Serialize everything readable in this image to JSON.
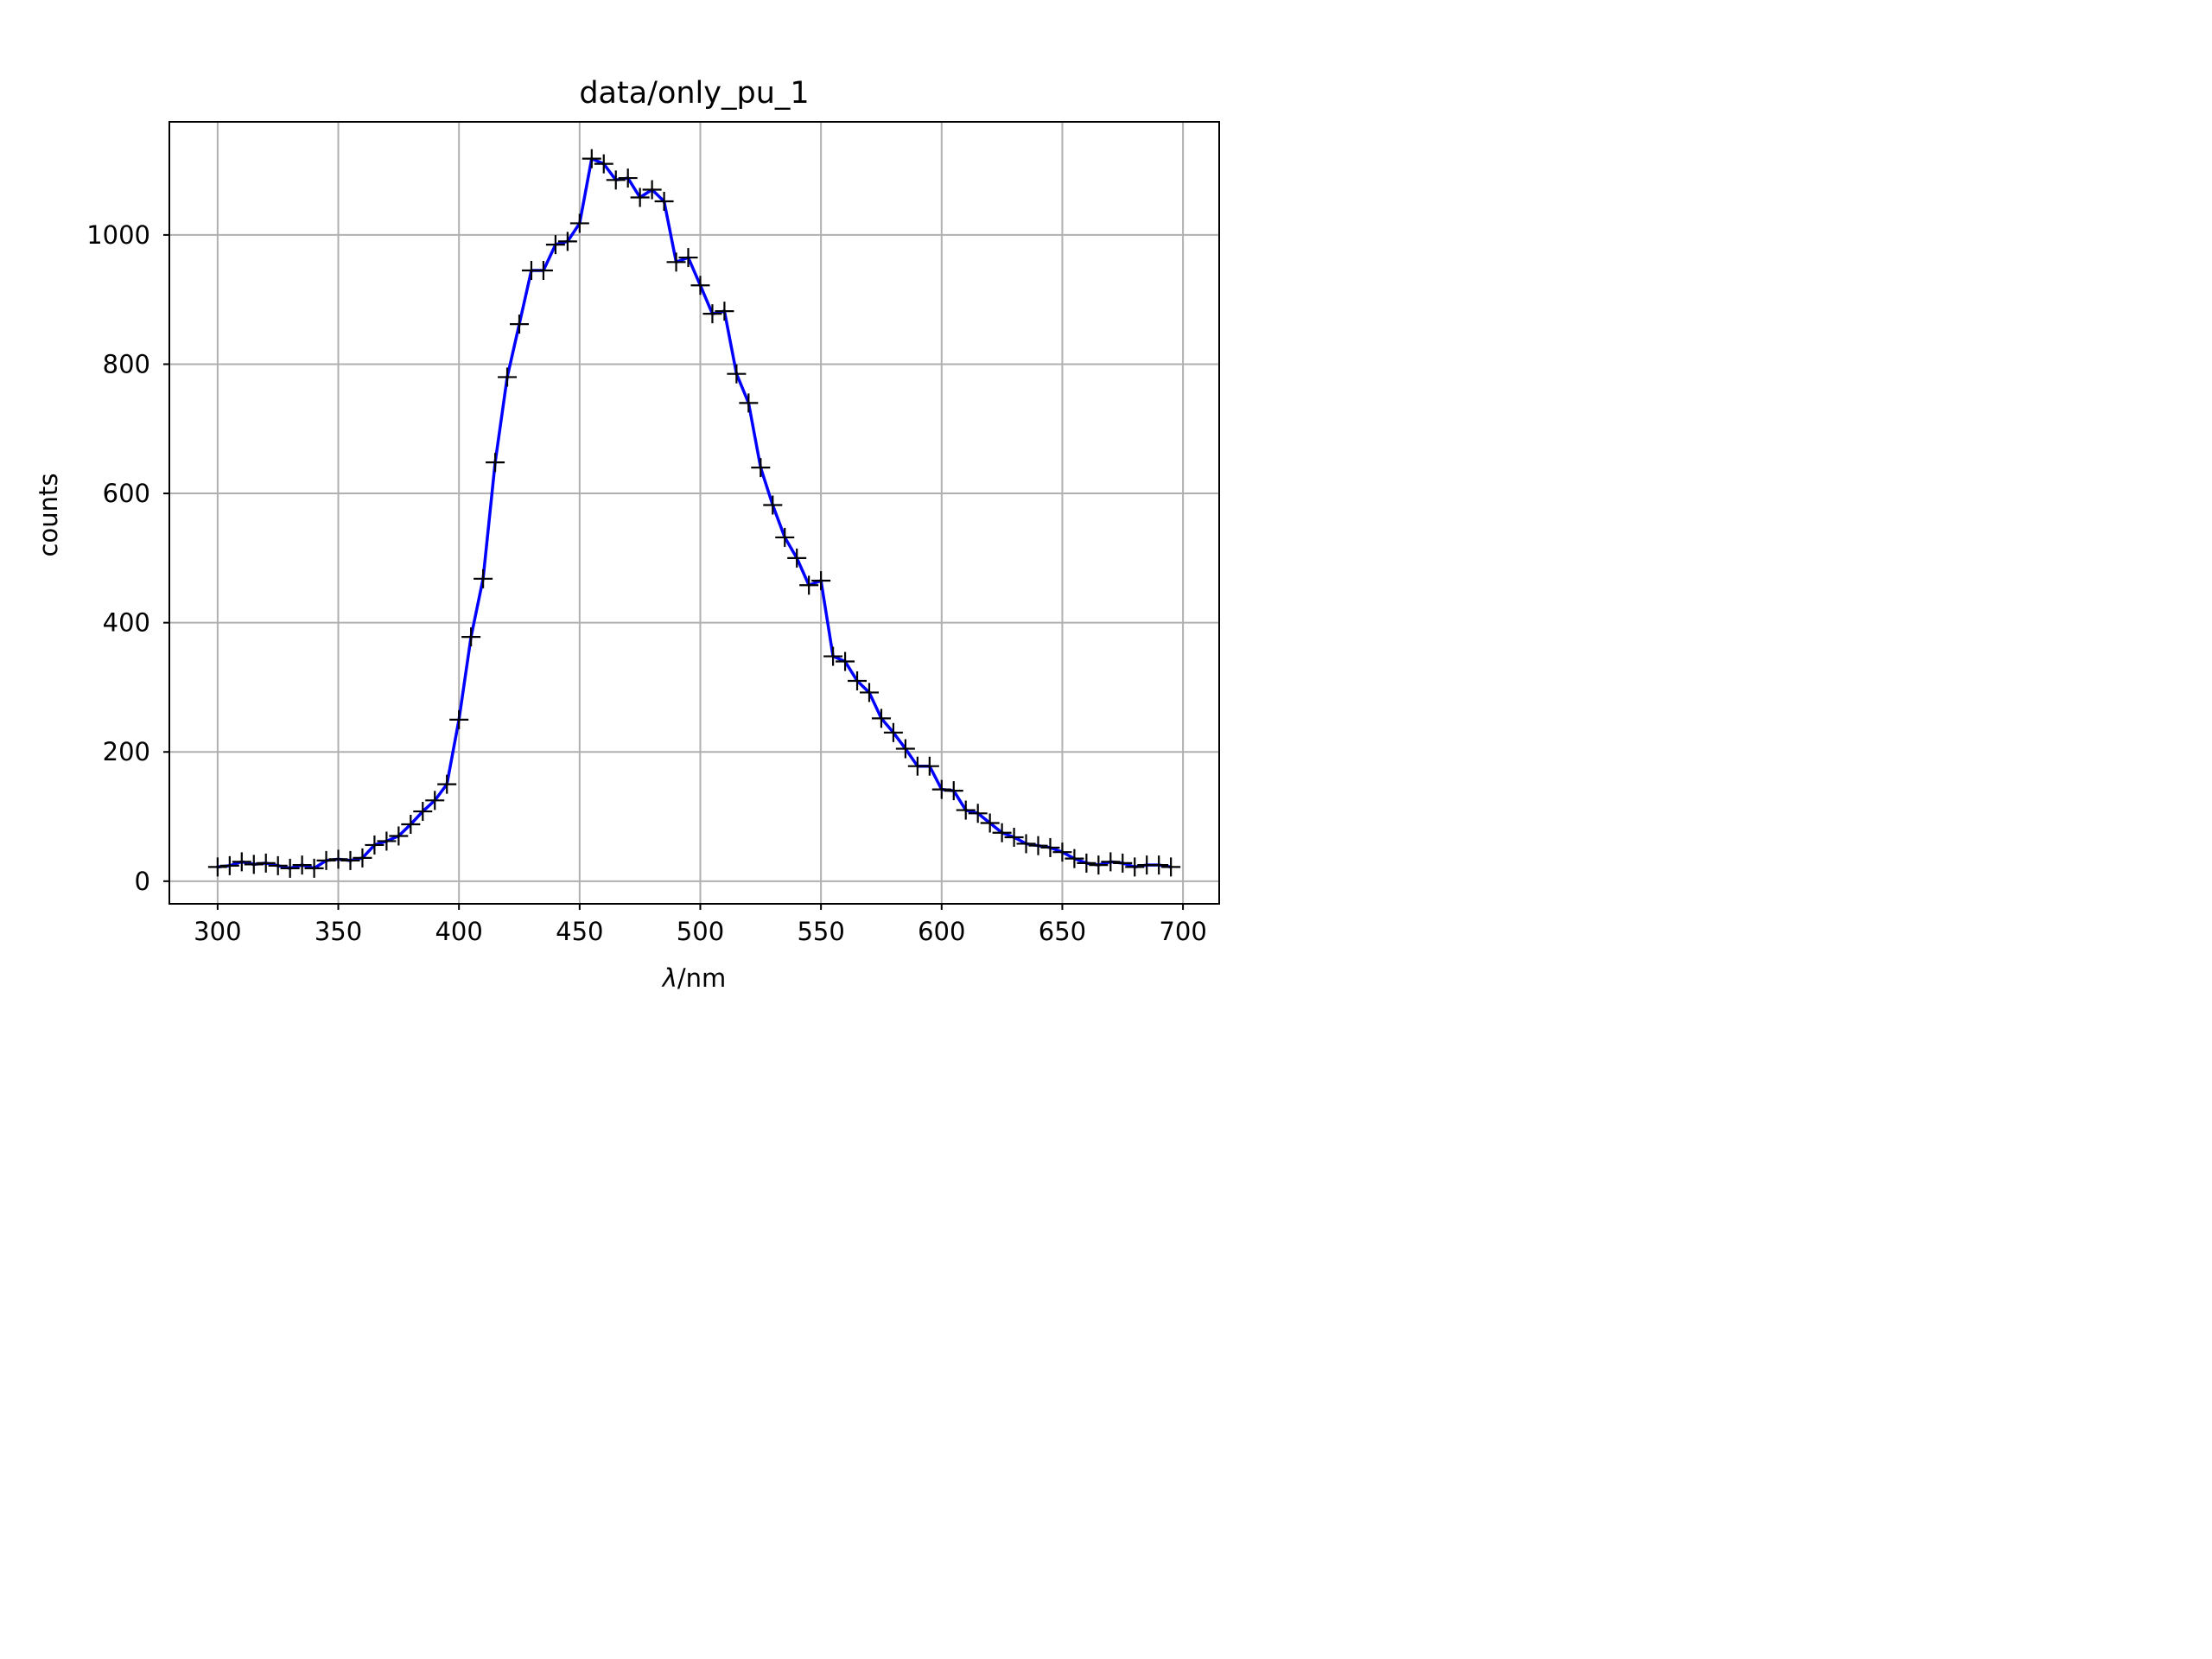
{
  "chart_data": {
    "type": "line",
    "title": "data/only_pu_1",
    "xlabel_symbol": "λ",
    "xlabel_unit": "/nm",
    "ylabel": "counts",
    "xlim": [
      280,
      715
    ],
    "ylim": [
      -35,
      1175
    ],
    "xticks": [
      300,
      350,
      400,
      450,
      500,
      550,
      600,
      650,
      700
    ],
    "yticks": [
      0,
      200,
      400,
      600,
      800,
      1000
    ],
    "grid": true,
    "line_color": "#0000ff",
    "marker_color": "#000000",
    "marker": "+",
    "x": [
      300,
      305,
      310,
      315,
      320,
      325,
      330,
      335,
      340,
      345,
      350,
      355,
      360,
      365,
      370,
      375,
      380,
      385,
      390,
      395,
      400,
      405,
      410,
      415,
      420,
      425,
      430,
      435,
      440,
      445,
      450,
      455,
      460,
      465,
      470,
      475,
      480,
      485,
      490,
      495,
      500,
      505,
      510,
      515,
      520,
      525,
      530,
      535,
      540,
      545,
      550,
      555,
      560,
      565,
      570,
      575,
      580,
      585,
      590,
      595,
      600,
      605,
      610,
      615,
      620,
      625,
      630,
      635,
      640,
      645,
      650,
      655,
      660,
      665,
      670,
      675,
      680,
      685,
      690,
      695
    ],
    "y": [
      22,
      24,
      30,
      26,
      28,
      24,
      20,
      25,
      20,
      32,
      34,
      32,
      36,
      56,
      62,
      70,
      88,
      108,
      125,
      150,
      250,
      378,
      468,
      648,
      780,
      862,
      945,
      945,
      985,
      990,
      1018,
      1118,
      1110,
      1085,
      1088,
      1058,
      1070,
      1052,
      958,
      965,
      922,
      878,
      882,
      785,
      740,
      640,
      582,
      532,
      500,
      458,
      465,
      348,
      340,
      310,
      292,
      252,
      230,
      205,
      178,
      178,
      142,
      140,
      110,
      105,
      90,
      75,
      68,
      58,
      55,
      52,
      45,
      35,
      28,
      25,
      30,
      28,
      22,
      25,
      25,
      22
    ]
  }
}
